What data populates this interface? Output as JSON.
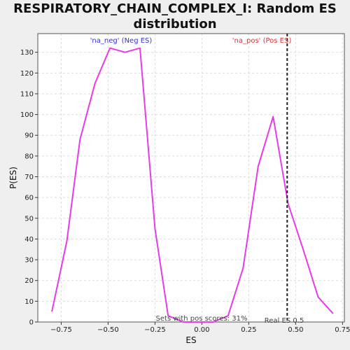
{
  "title_line1": "RESPIRATORY_CHAIN_COMPLEX_I: Random ES",
  "title_line2": "distribution",
  "chart_data": {
    "type": "line",
    "title": "RESPIRATORY_CHAIN_COMPLEX_I: Random ES distribution",
    "xlabel": "ES",
    "ylabel": "P(ES)",
    "xlim": [
      -0.875,
      0.76
    ],
    "ylim": [
      0,
      139
    ],
    "xticks": [
      -0.75,
      -0.5,
      -0.25,
      0.0,
      0.25,
      0.5,
      0.75
    ],
    "xtick_labels": [
      "−0.75",
      "−0.50",
      "−0.25",
      "0.00",
      "0.25",
      "0.50",
      "0.75"
    ],
    "yticks": [
      0,
      10,
      20,
      30,
      40,
      50,
      60,
      70,
      80,
      90,
      100,
      110,
      120,
      130
    ],
    "ytick_labels": [
      "0",
      "10",
      "20",
      "30",
      "40",
      "50",
      "60",
      "70",
      "80",
      "90",
      "100",
      "110",
      "120",
      "130"
    ],
    "grid": true,
    "series": [
      {
        "color": "#e83ae8",
        "x": [
          -0.8,
          -0.72,
          -0.65,
          -0.57,
          -0.49,
          -0.41,
          -0.33,
          -0.25,
          -0.18,
          -0.1,
          -0.02,
          0.06,
          0.14,
          0.22,
          0.3,
          0.38,
          0.46,
          0.54,
          0.62,
          0.7
        ],
        "y": [
          5,
          39,
          88,
          115,
          132,
          130,
          132,
          45,
          3,
          0,
          0,
          0,
          3,
          26,
          75,
          99,
          57,
          35,
          12,
          4
        ]
      }
    ],
    "real_es_line": {
      "x": 0.455,
      "color": "#222222",
      "style": "dashed"
    },
    "annotations": {
      "neg_label": "'na_neg' (Neg ES)",
      "pos_label": "'na_pos' (Pos ES)",
      "sets_label": "Sets with pos scores: 31%",
      "real_es_label": "Real ES 0.5"
    },
    "colors": {
      "neg": "#3333cc",
      "pos": "#dd3333",
      "annot": "#444444",
      "grid": "#dddddd"
    }
  }
}
